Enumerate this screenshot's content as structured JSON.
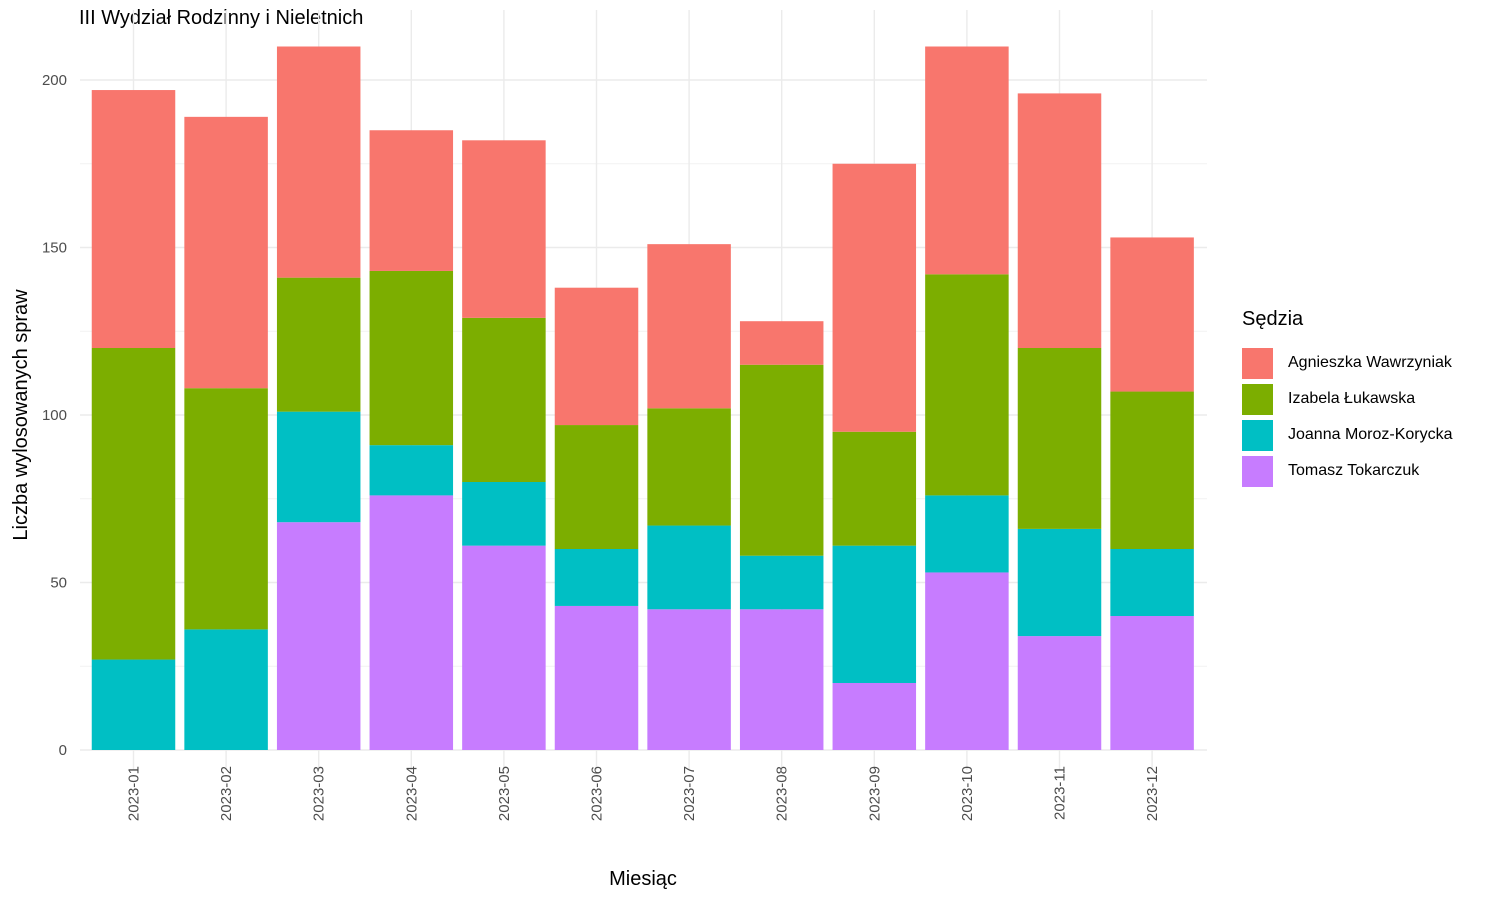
{
  "chart_data": {
    "type": "bar",
    "stacked": true,
    "title": "III Wydział Rodzinny i Nieletnich",
    "xlabel": "Miesiąc",
    "ylabel": "Liczba wylosowanych spraw",
    "ylim": [
      0,
      215
    ],
    "yticks": [
      0,
      50,
      100,
      150,
      200
    ],
    "grid": true,
    "legend_position": "right",
    "legend_title": "Sędzia",
    "categories": [
      "2023-01",
      "2023-02",
      "2023-03",
      "2023-04",
      "2023-05",
      "2023-06",
      "2023-07",
      "2023-08",
      "2023-09",
      "2023-10",
      "2023-11",
      "2023-12"
    ],
    "series": [
      {
        "name": "Agnieszka Wawrzyniak",
        "color": "#F8766D",
        "values": [
          77,
          81,
          69,
          42,
          53,
          41,
          49,
          13,
          80,
          68,
          76,
          46
        ]
      },
      {
        "name": "Izabela Łukawska",
        "color": "#7CAE00",
        "values": [
          93,
          72,
          40,
          52,
          49,
          37,
          35,
          57,
          34,
          66,
          54,
          47
        ]
      },
      {
        "name": "Joanna Moroz-Korycka",
        "color": "#00BFC4",
        "values": [
          27,
          36,
          33,
          15,
          19,
          17,
          25,
          16,
          41,
          23,
          32,
          20
        ]
      },
      {
        "name": "Tomasz Tokarczuk",
        "color": "#C77CFF",
        "values": [
          0,
          0,
          68,
          76,
          61,
          43,
          42,
          42,
          20,
          53,
          34,
          40
        ]
      }
    ]
  }
}
